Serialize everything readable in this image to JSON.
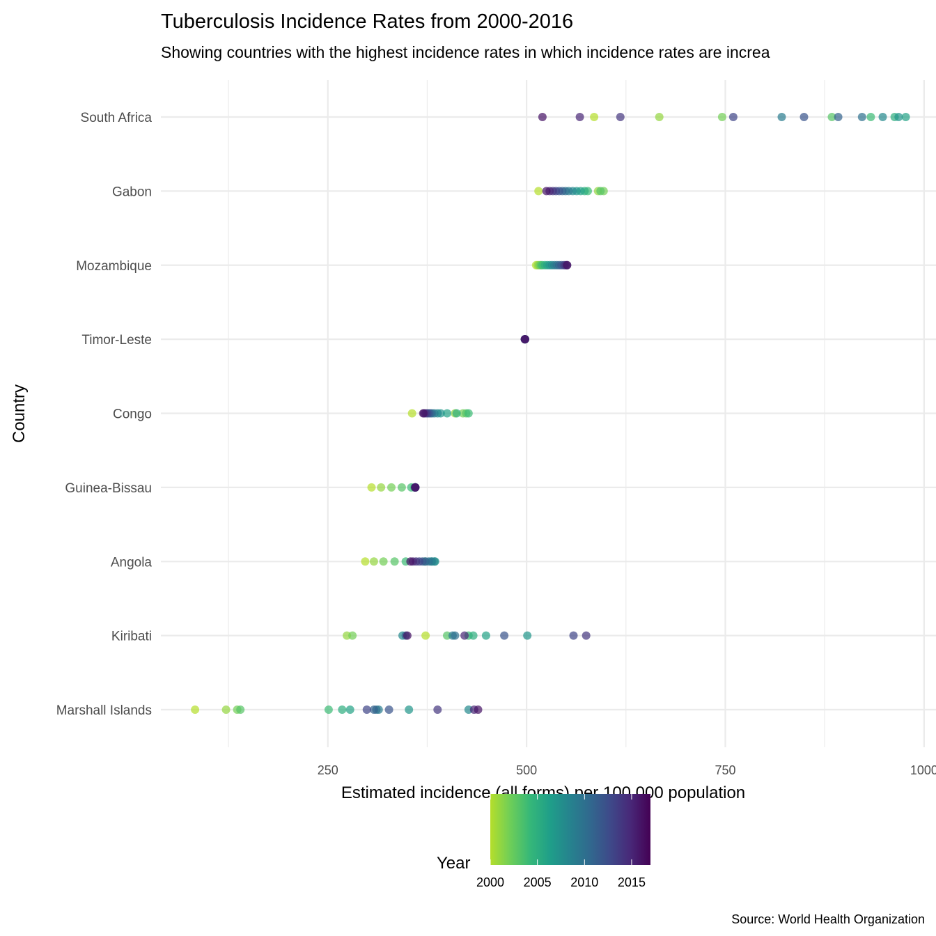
{
  "chart_data": {
    "type": "scatter",
    "title": "Tuberculosis Incidence Rates from 2000-2016",
    "subtitle": "Showing countries with the highest incidence rates in which incidence rates are increa",
    "xlabel": "Estimated incidence (all forms) per 100 000 population",
    "ylabel": "Country",
    "caption": "Source: World Health Organization",
    "xlim": [
      40,
      1015
    ],
    "x_ticks": [
      250,
      500,
      750,
      1000
    ],
    "x_tick_labels": [
      "250",
      "500",
      "750",
      "1000"
    ],
    "x_minor_ticks": [
      125,
      375,
      625,
      875
    ],
    "grid": true,
    "categories": [
      "South Africa",
      "Gabon",
      "Mozambique",
      "Timor-Leste",
      "Congo",
      "Guinea-Bissau",
      "Angola",
      "Kiribati",
      "Marshall Islands"
    ],
    "color_scale": {
      "title": "Year",
      "palette": "viridis-reversed",
      "range": [
        2000,
        2017
      ],
      "ticks": [
        2000,
        2005,
        2010,
        2015
      ],
      "tick_labels": [
        "2000",
        "2005",
        "2010",
        "2015"
      ],
      "colors": [
        "#b5de2b",
        "#6ece58",
        "#35b779",
        "#1f9e89",
        "#26828e",
        "#31688e",
        "#3e4989",
        "#482878",
        "#440154"
      ],
      "position": "bottom"
    },
    "point_alpha": 0.7,
    "series": [
      {
        "name": "South Africa",
        "points": [
          {
            "year": 2000,
            "value": 585
          },
          {
            "year": 2001,
            "value": 667
          },
          {
            "year": 2002,
            "value": 746
          },
          {
            "year": 2003,
            "value": 884
          },
          {
            "year": 2004,
            "value": 933
          },
          {
            "year": 2005,
            "value": 963
          },
          {
            "year": 2006,
            "value": 977
          },
          {
            "year": 2007,
            "value": 968
          },
          {
            "year": 2008,
            "value": 948
          },
          {
            "year": 2009,
            "value": 821
          },
          {
            "year": 2010,
            "value": 922
          },
          {
            "year": 2011,
            "value": 892
          },
          {
            "year": 2012,
            "value": 849
          },
          {
            "year": 2013,
            "value": 760
          },
          {
            "year": 2014,
            "value": 618
          },
          {
            "year": 2015,
            "value": 567
          },
          {
            "year": 2016,
            "value": 520
          }
        ]
      },
      {
        "name": "Gabon",
        "points": [
          {
            "year": 2000,
            "value": 515
          },
          {
            "year": 2001,
            "value": 590
          },
          {
            "year": 2002,
            "value": 597
          },
          {
            "year": 2003,
            "value": 593
          },
          {
            "year": 2004,
            "value": 577
          },
          {
            "year": 2005,
            "value": 573
          },
          {
            "year": 2006,
            "value": 568
          },
          {
            "year": 2007,
            "value": 563
          },
          {
            "year": 2008,
            "value": 558
          },
          {
            "year": 2009,
            "value": 553
          },
          {
            "year": 2010,
            "value": 549
          },
          {
            "year": 2011,
            "value": 545
          },
          {
            "year": 2012,
            "value": 541
          },
          {
            "year": 2013,
            "value": 537
          },
          {
            "year": 2014,
            "value": 533
          },
          {
            "year": 2015,
            "value": 529
          },
          {
            "year": 2016,
            "value": 525
          }
        ]
      },
      {
        "name": "Mozambique",
        "points": [
          {
            "year": 2000,
            "value": 512
          },
          {
            "year": 2001,
            "value": 514
          },
          {
            "year": 2002,
            "value": 516
          },
          {
            "year": 2003,
            "value": 518
          },
          {
            "year": 2004,
            "value": 520
          },
          {
            "year": 2005,
            "value": 523
          },
          {
            "year": 2006,
            "value": 526
          },
          {
            "year": 2007,
            "value": 529
          },
          {
            "year": 2008,
            "value": 532
          },
          {
            "year": 2009,
            "value": 535
          },
          {
            "year": 2010,
            "value": 538
          },
          {
            "year": 2011,
            "value": 541
          },
          {
            "year": 2012,
            "value": 544
          },
          {
            "year": 2013,
            "value": 547
          },
          {
            "year": 2014,
            "value": 549
          },
          {
            "year": 2015,
            "value": 551
          },
          {
            "year": 2016,
            "value": 551
          }
        ]
      },
      {
        "name": "Timor-Leste",
        "points": [
          {
            "year": 2000,
            "value": 498
          },
          {
            "year": 2001,
            "value": 498
          },
          {
            "year": 2002,
            "value": 498
          },
          {
            "year": 2003,
            "value": 498
          },
          {
            "year": 2004,
            "value": 498
          },
          {
            "year": 2005,
            "value": 498
          },
          {
            "year": 2006,
            "value": 498
          },
          {
            "year": 2007,
            "value": 498
          },
          {
            "year": 2008,
            "value": 498
          },
          {
            "year": 2009,
            "value": 498
          },
          {
            "year": 2010,
            "value": 498
          },
          {
            "year": 2011,
            "value": 498
          },
          {
            "year": 2012,
            "value": 498
          },
          {
            "year": 2013,
            "value": 498
          },
          {
            "year": 2014,
            "value": 498
          },
          {
            "year": 2015,
            "value": 498
          },
          {
            "year": 2016,
            "value": 498
          }
        ]
      },
      {
        "name": "Congo",
        "points": [
          {
            "year": 2000,
            "value": 356
          },
          {
            "year": 2001,
            "value": 410
          },
          {
            "year": 2002,
            "value": 420
          },
          {
            "year": 2003,
            "value": 424
          },
          {
            "year": 2004,
            "value": 427
          },
          {
            "year": 2005,
            "value": 412
          },
          {
            "year": 2006,
            "value": 400
          },
          {
            "year": 2007,
            "value": 392
          },
          {
            "year": 2008,
            "value": 388
          },
          {
            "year": 2009,
            "value": 384
          },
          {
            "year": 2010,
            "value": 381
          },
          {
            "year": 2011,
            "value": 379
          },
          {
            "year": 2012,
            "value": 377
          },
          {
            "year": 2013,
            "value": 375
          },
          {
            "year": 2014,
            "value": 373
          },
          {
            "year": 2015,
            "value": 371
          },
          {
            "year": 2016,
            "value": 370
          }
        ]
      },
      {
        "name": "Guinea-Bissau",
        "points": [
          {
            "year": 2000,
            "value": 305
          },
          {
            "year": 2001,
            "value": 317
          },
          {
            "year": 2002,
            "value": 330
          },
          {
            "year": 2003,
            "value": 343
          },
          {
            "year": 2004,
            "value": 355
          },
          {
            "year": 2005,
            "value": 359
          },
          {
            "year": 2006,
            "value": 360
          },
          {
            "year": 2007,
            "value": 360
          },
          {
            "year": 2008,
            "value": 360
          },
          {
            "year": 2009,
            "value": 360
          },
          {
            "year": 2010,
            "value": 360
          },
          {
            "year": 2011,
            "value": 360
          },
          {
            "year": 2012,
            "value": 360
          },
          {
            "year": 2013,
            "value": 360
          },
          {
            "year": 2014,
            "value": 360
          },
          {
            "year": 2015,
            "value": 360
          },
          {
            "year": 2016,
            "value": 360
          }
        ]
      },
      {
        "name": "Angola",
        "points": [
          {
            "year": 2000,
            "value": 297
          },
          {
            "year": 2001,
            "value": 308
          },
          {
            "year": 2002,
            "value": 320
          },
          {
            "year": 2003,
            "value": 334
          },
          {
            "year": 2004,
            "value": 348
          },
          {
            "year": 2005,
            "value": 372
          },
          {
            "year": 2006,
            "value": 380
          },
          {
            "year": 2007,
            "value": 385
          },
          {
            "year": 2008,
            "value": 384
          },
          {
            "year": 2009,
            "value": 381
          },
          {
            "year": 2010,
            "value": 377
          },
          {
            "year": 2011,
            "value": 373
          },
          {
            "year": 2012,
            "value": 369
          },
          {
            "year": 2013,
            "value": 365
          },
          {
            "year": 2014,
            "value": 361
          },
          {
            "year": 2015,
            "value": 357
          },
          {
            "year": 2016,
            "value": 354
          }
        ]
      },
      {
        "name": "Kiribati",
        "points": [
          {
            "year": 2000,
            "value": 373
          },
          {
            "year": 2001,
            "value": 274
          },
          {
            "year": 2002,
            "value": 281
          },
          {
            "year": 2003,
            "value": 400
          },
          {
            "year": 2004,
            "value": 427
          },
          {
            "year": 2005,
            "value": 433
          },
          {
            "year": 2006,
            "value": 449
          },
          {
            "year": 2007,
            "value": 501
          },
          {
            "year": 2008,
            "value": 344
          },
          {
            "year": 2009,
            "value": 407
          },
          {
            "year": 2010,
            "value": 410
          },
          {
            "year": 2011,
            "value": 348
          },
          {
            "year": 2012,
            "value": 472
          },
          {
            "year": 2013,
            "value": 559
          },
          {
            "year": 2014,
            "value": 575
          },
          {
            "year": 2015,
            "value": 422
          },
          {
            "year": 2016,
            "value": 350
          }
        ]
      },
      {
        "name": "Marshall Islands",
        "points": [
          {
            "year": 2000,
            "value": 83
          },
          {
            "year": 2001,
            "value": 122
          },
          {
            "year": 2002,
            "value": 136
          },
          {
            "year": 2003,
            "value": 140
          },
          {
            "year": 2004,
            "value": 251
          },
          {
            "year": 2005,
            "value": 268
          },
          {
            "year": 2006,
            "value": 278
          },
          {
            "year": 2007,
            "value": 352
          },
          {
            "year": 2008,
            "value": 427
          },
          {
            "year": 2009,
            "value": 314
          },
          {
            "year": 2010,
            "value": 311
          },
          {
            "year": 2011,
            "value": 308
          },
          {
            "year": 2012,
            "value": 327
          },
          {
            "year": 2013,
            "value": 299
          },
          {
            "year": 2014,
            "value": 388
          },
          {
            "year": 2015,
            "value": 434
          },
          {
            "year": 2016,
            "value": 439
          }
        ]
      }
    ]
  }
}
